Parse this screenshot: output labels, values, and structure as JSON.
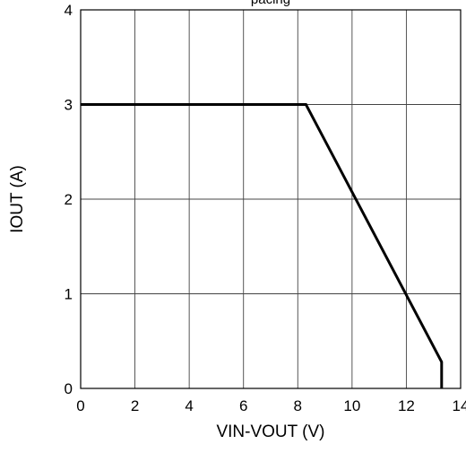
{
  "chart_data": {
    "type": "line",
    "title": "pacing",
    "xlabel": "VIN-VOUT (V)",
    "ylabel": "IOUT (A)",
    "xlim": [
      0,
      14
    ],
    "ylim": [
      0,
      4
    ],
    "grid": true,
    "x_ticks": [
      "0",
      "2",
      "4",
      "6",
      "8",
      "10",
      "12",
      "14"
    ],
    "y_ticks": [
      "0",
      "1",
      "2",
      "3",
      "4"
    ],
    "series": [
      {
        "x": [
          0,
          8.3,
          13.3,
          13.3
        ],
        "y": [
          3,
          3,
          0.28,
          0
        ],
        "color": "#000000"
      }
    ]
  }
}
